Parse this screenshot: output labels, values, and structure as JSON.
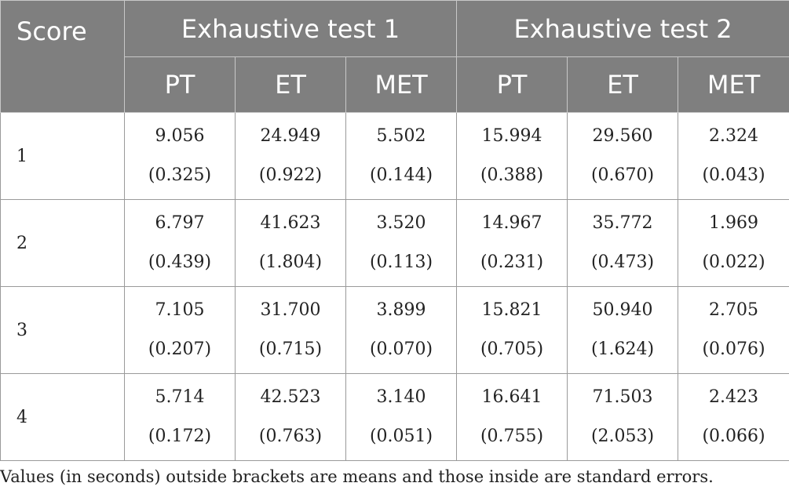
{
  "table": {
    "header": {
      "score_label": "Score",
      "groups": [
        "Exhaustive test 1",
        "Exhaustive test 2"
      ],
      "subcolumns": [
        "PT",
        "ET",
        "MET",
        "PT",
        "ET",
        "MET"
      ]
    },
    "rows": [
      {
        "score": "1",
        "cells": [
          {
            "mean": "9.056",
            "se": "(0.325)"
          },
          {
            "mean": "24.949",
            "se": "(0.922)"
          },
          {
            "mean": "5.502",
            "se": "(0.144)"
          },
          {
            "mean": "15.994",
            "se": "(0.388)"
          },
          {
            "mean": "29.560",
            "se": "(0.670)"
          },
          {
            "mean": "2.324",
            "se": "(0.043)"
          }
        ]
      },
      {
        "score": "2",
        "cells": [
          {
            "mean": "6.797",
            "se": "(0.439)"
          },
          {
            "mean": "41.623",
            "se": "(1.804)"
          },
          {
            "mean": "3.520",
            "se": "(0.113)"
          },
          {
            "mean": "14.967",
            "se": "(0.231)"
          },
          {
            "mean": "35.772",
            "se": "(0.473)"
          },
          {
            "mean": "1.969",
            "se": "(0.022)"
          }
        ]
      },
      {
        "score": "3",
        "cells": [
          {
            "mean": "7.105",
            "se": "(0.207)"
          },
          {
            "mean": "31.700",
            "se": "(0.715)"
          },
          {
            "mean": "3.899",
            "se": "(0.070)"
          },
          {
            "mean": "15.821",
            "se": "(0.705)"
          },
          {
            "mean": "50.940",
            "se": "(1.624)"
          },
          {
            "mean": "2.705",
            "se": "(0.076)"
          }
        ]
      },
      {
        "score": "4",
        "cells": [
          {
            "mean": "5.714",
            "se": "(0.172)"
          },
          {
            "mean": "42.523",
            "se": "(0.763)"
          },
          {
            "mean": "3.140",
            "se": "(0.051)"
          },
          {
            "mean": "16.641",
            "se": "(0.755)"
          },
          {
            "mean": "71.503",
            "se": "(2.053)"
          },
          {
            "mean": "2.423",
            "se": "(0.066)"
          }
        ]
      }
    ]
  },
  "footnote": "Values (in seconds) outside brackets are means and those inside are standard errors.",
  "colors": {
    "header_background": "#7f7f7f",
    "header_text": "#ffffff",
    "body_text": "#222222",
    "border": "#9a9a9a"
  }
}
